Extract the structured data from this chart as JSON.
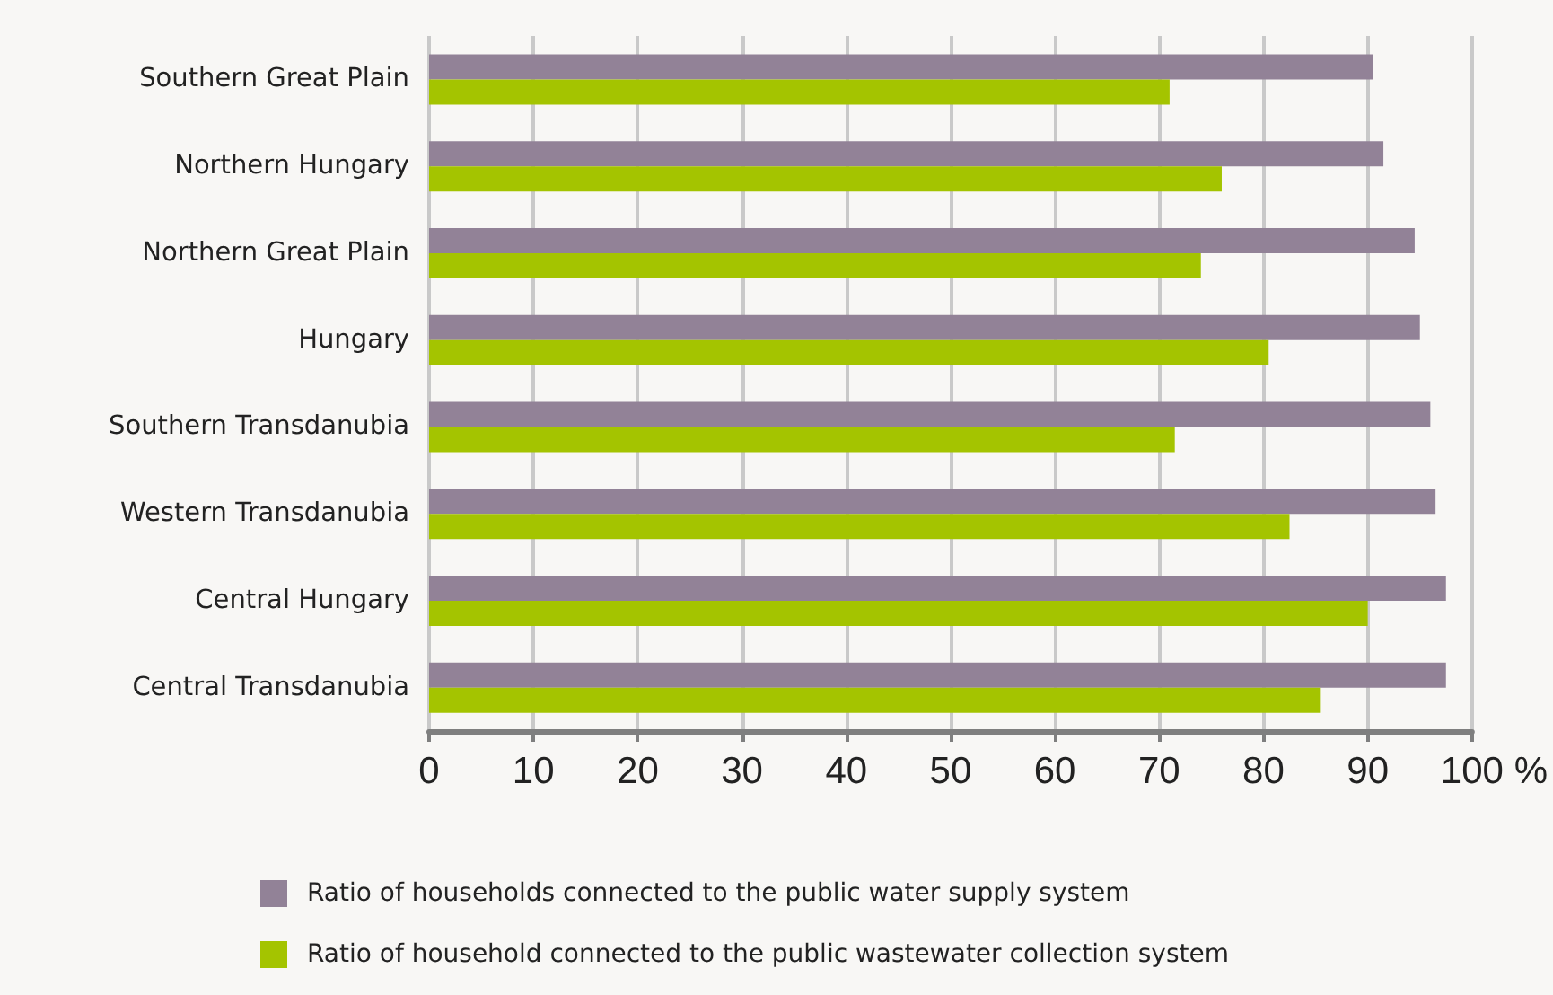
{
  "chart_data": {
    "type": "bar",
    "orientation": "horizontal",
    "categories": [
      "Southern Great Plain",
      "Northern Hungary",
      "Northern Great Plain",
      "Hungary",
      "Southern Transdanubia",
      "Western Transdanubia",
      "Central Hungary",
      "Central Transdanubia"
    ],
    "series": [
      {
        "name": "Ratio of households connected to the public water supply system",
        "color": "#928297",
        "values": [
          90.5,
          91.5,
          94.5,
          95,
          96,
          96.5,
          97.5,
          97.5
        ]
      },
      {
        "name": "Ratio of household connected to the public wastewater collection system",
        "color": "#a4c400",
        "values": [
          71,
          76,
          74,
          80.5,
          71.5,
          82.5,
          90,
          85.5
        ]
      }
    ],
    "xlabel": "%",
    "xlim": [
      0,
      100
    ],
    "xticks": [
      0,
      10,
      20,
      30,
      40,
      50,
      60,
      70,
      80,
      90,
      100
    ],
    "grid": "x",
    "legend": "bottom"
  }
}
